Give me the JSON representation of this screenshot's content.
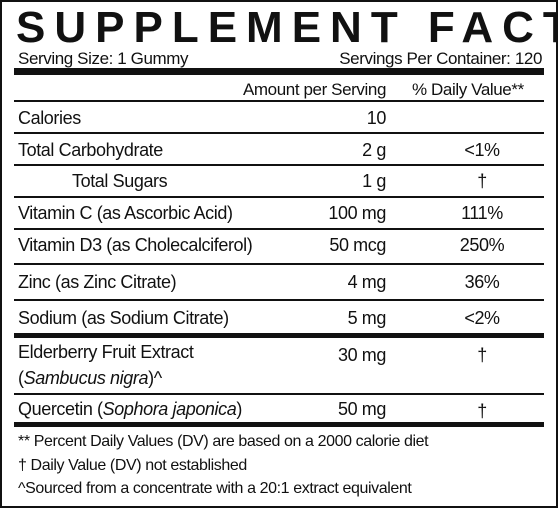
{
  "title": "SUPPLEMENT FACTS",
  "serving_size": "Serving Size: 1 Gummy",
  "servings_per_container": "Servings Per Container: 120",
  "header": {
    "amount": "Amount per Serving",
    "dv": "% Daily Value**"
  },
  "rows": [
    {
      "name": [
        "Calories"
      ],
      "amount": "10"
    },
    {
      "name": [
        "Total Carbohydrate"
      ],
      "amount": "2 g",
      "dv": "<1%"
    },
    {
      "name": [
        "Total Sugars"
      ],
      "amount": "1 g",
      "dv": "†"
    },
    {
      "name": [
        "Vitamin C (as Ascorbic Acid)"
      ],
      "amount": "100 mg",
      "dv": "111%"
    },
    {
      "name": [
        "Vitamin D3 (as Cholecalciferol)"
      ],
      "amount": "50 mcg",
      "dv": "250%"
    },
    {
      "name": [
        "Zinc (as Zinc Citrate)"
      ],
      "amount": "4 mg",
      "dv": "36%"
    },
    {
      "name": [
        "Sodium (as Sodium Citrate)"
      ],
      "amount": "5 mg",
      "dv": "<2%"
    },
    {
      "name": [
        "Elderberry Fruit Extract",
        "(",
        "Sambucus nigra",
        ")^"
      ],
      "amount": "30 mg",
      "dv": "†"
    },
    {
      "name": [
        "Quercetin (",
        "Sophora japonica",
        ")"
      ],
      "amount": "50 mg",
      "dv": "†"
    }
  ],
  "footnotes": [
    "** Percent Daily Values (DV) are based on a 2000 calorie diet",
    "† Daily Value (DV) not established",
    "^Sourced from a concentrate with a 20:1 extract equivalent"
  ]
}
